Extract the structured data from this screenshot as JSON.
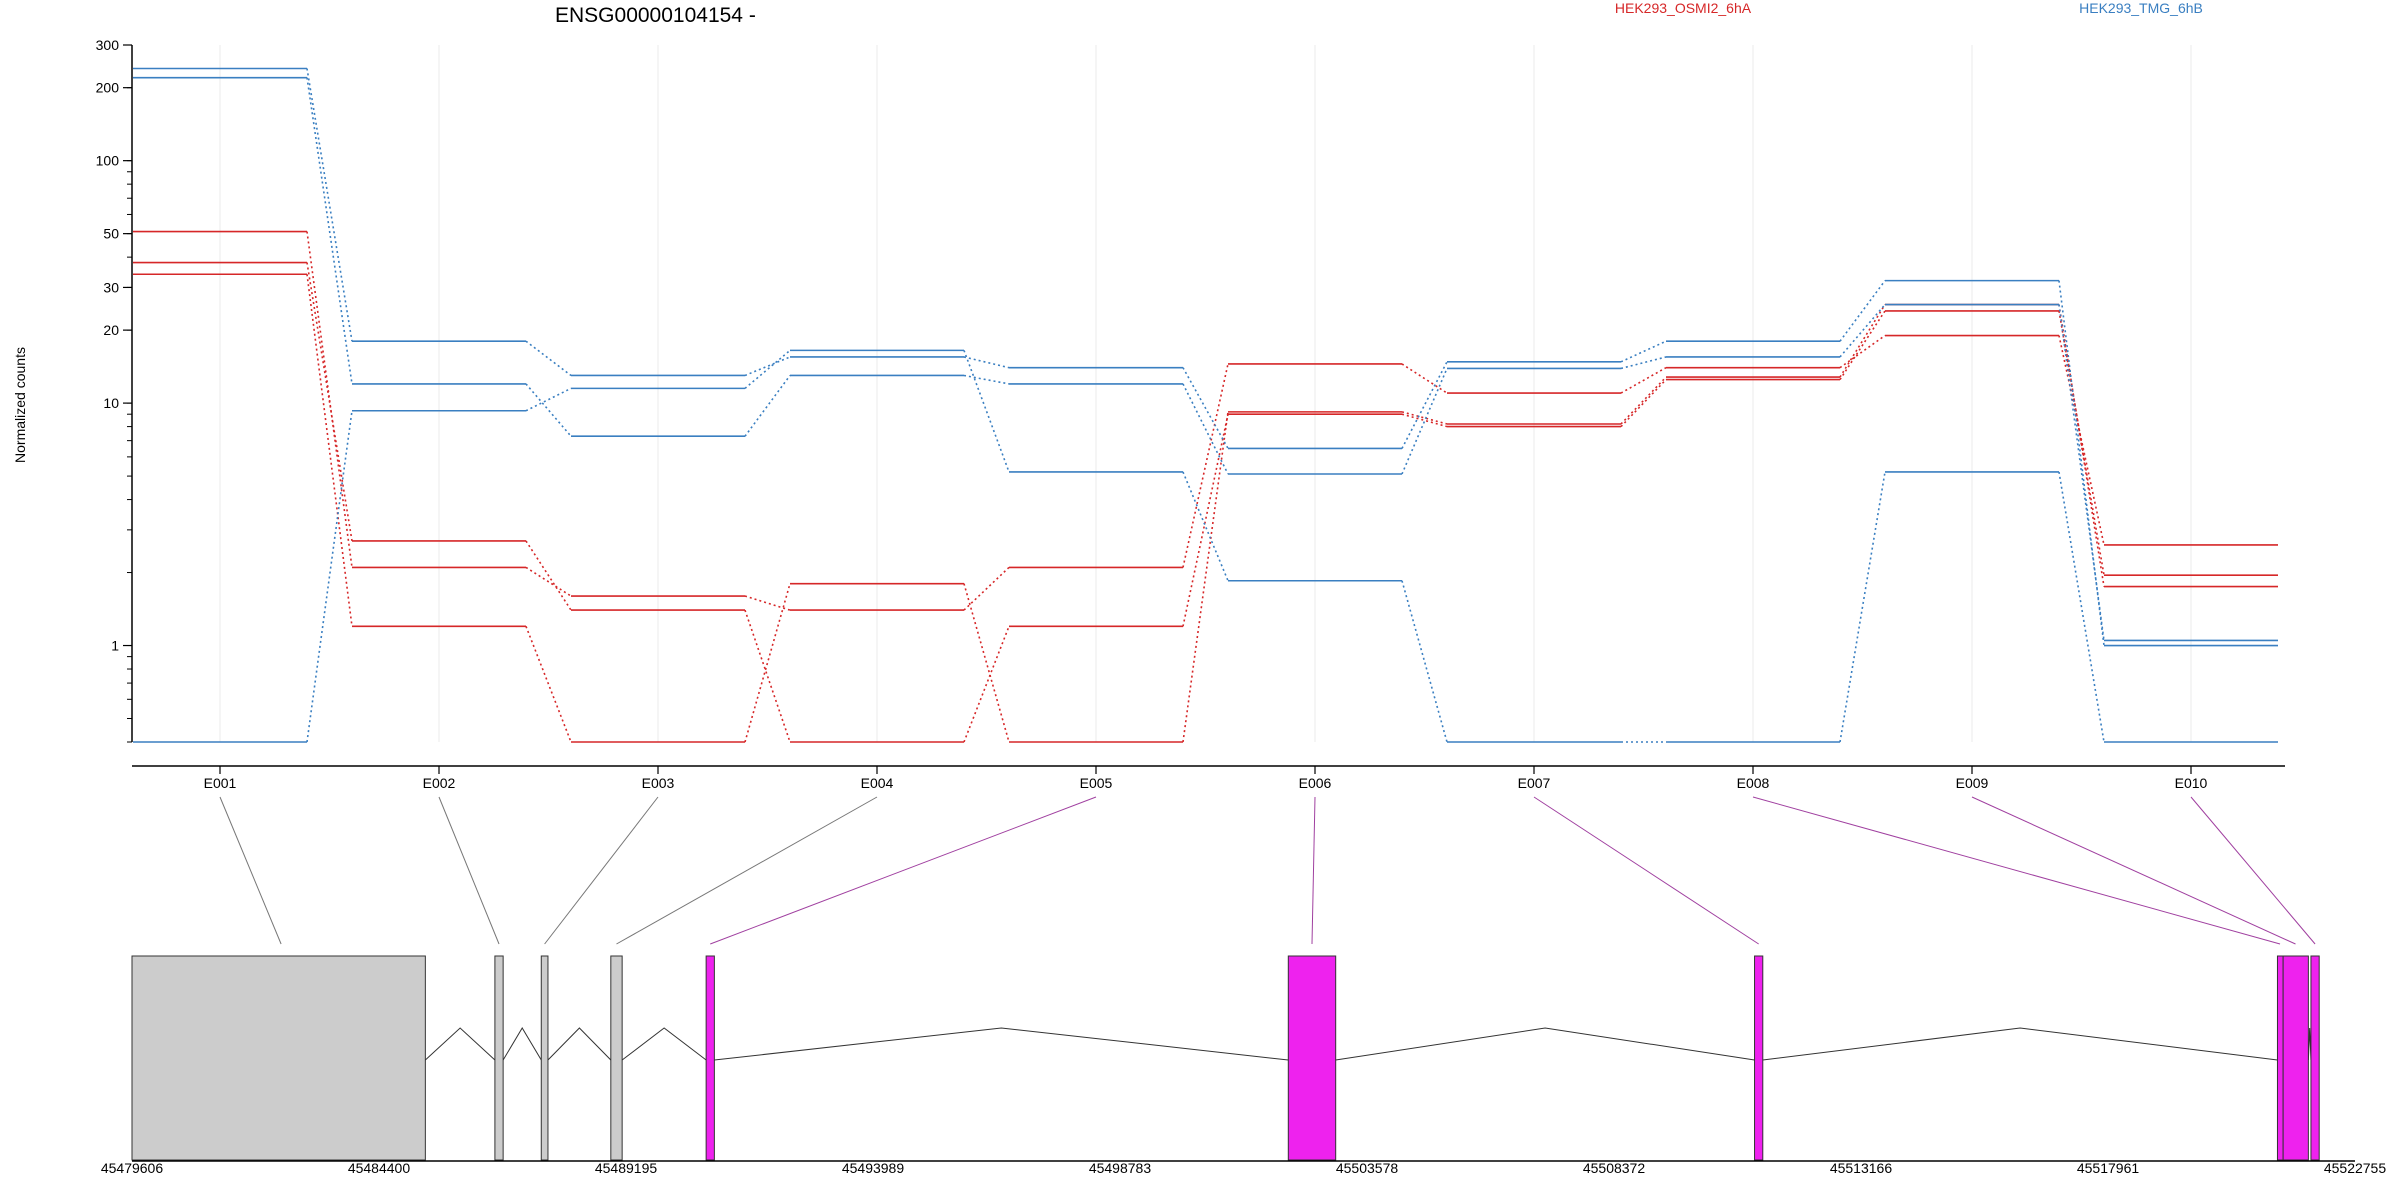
{
  "chart_data": {
    "type": "line",
    "title": "ENSG00000104154 -",
    "ylabel": "Normalized counts",
    "yscale": "log",
    "ylim": [
      0.4,
      300
    ],
    "y_ticks_labeled": [
      "1",
      "10",
      "20",
      "30",
      "50",
      "100",
      "200",
      "300"
    ],
    "categories": [
      "E001",
      "E002",
      "E003",
      "E004",
      "E005",
      "E006",
      "E007",
      "E008",
      "E009",
      "E010"
    ],
    "legend": [
      {
        "name": "HEK293_OSMI2_6hA",
        "color": "#d62728"
      },
      {
        "name": "HEK293_TMG_6hB",
        "color": "#3a7fc1"
      }
    ],
    "series": [
      {
        "group": "HEK293_OSMI2_6hA",
        "color": "#d62728",
        "values": [
          51,
          2.1,
          1.6,
          1.4,
          2.1,
          14.5,
          11,
          14,
          19,
          2.6
        ]
      },
      {
        "group": "HEK293_OSMI2_6hA",
        "color": "#d62728",
        "values": [
          38,
          2.7,
          1.4,
          0.4,
          1.2,
          9.0,
          8.0,
          12.5,
          24,
          1.95
        ]
      },
      {
        "group": "HEK293_OSMI2_6hA",
        "color": "#d62728",
        "values": [
          34,
          1.2,
          0.4,
          1.8,
          0.4,
          9.2,
          8.2,
          12.8,
          25.5,
          1.75
        ]
      },
      {
        "group": "HEK293_TMG_6hB",
        "color": "#3a7fc1",
        "values": [
          240,
          18,
          13,
          15.5,
          14,
          6.5,
          14.8,
          18,
          32,
          1.0
        ]
      },
      {
        "group": "HEK293_TMG_6hB",
        "color": "#3a7fc1",
        "values": [
          220,
          12,
          7.3,
          13,
          12,
          5.1,
          13.9,
          15.5,
          25.5,
          1.05
        ]
      },
      {
        "group": "HEK293_TMG_6hB",
        "color": "#3a7fc1",
        "values": [
          0.4,
          9.3,
          11.5,
          16.5,
          5.2,
          1.85,
          0.4,
          0.4,
          5.2,
          0.4
        ]
      }
    ],
    "gene_model": {
      "coordinate_ticks": [
        "45479606",
        "45484400",
        "45489195",
        "45493989",
        "45498783",
        "45503578",
        "45508372",
        "45513166",
        "45517961",
        "45522755"
      ],
      "exons": [
        {
          "start": 45479606,
          "end": 45485300,
          "color": "#cccccc"
        },
        {
          "start": 45486650,
          "end": 45486810,
          "color": "#cccccc"
        },
        {
          "start": 45487550,
          "end": 45487680,
          "color": "#cccccc"
        },
        {
          "start": 45488900,
          "end": 45489120,
          "color": "#cccccc"
        },
        {
          "start": 45490750,
          "end": 45490910,
          "color": "#ee22ee"
        },
        {
          "start": 45502050,
          "end": 45502970,
          "color": "#ee22ee"
        },
        {
          "start": 45511100,
          "end": 45511260,
          "color": "#ee22ee"
        },
        {
          "start": 45521250,
          "end": 45521360,
          "color": "#ee22ee"
        },
        {
          "start": 45521360,
          "end": 45521850,
          "color": "#ee22ee"
        },
        {
          "start": 45521900,
          "end": 45522060,
          "color": "#ee22ee"
        }
      ],
      "connectors": [
        {
          "from": "E001",
          "to_x": 45482500,
          "color": "#777777"
        },
        {
          "from": "E002",
          "to_x": 45486730,
          "color": "#777777"
        },
        {
          "from": "E003",
          "to_x": 45487615,
          "color": "#777777"
        },
        {
          "from": "E004",
          "to_x": 45489010,
          "color": "#777777"
        },
        {
          "from": "E005",
          "to_x": 45490830,
          "color": "#a040a0"
        },
        {
          "from": "E006",
          "to_x": 45502510,
          "color": "#a040a0"
        },
        {
          "from": "E007",
          "to_x": 45511180,
          "color": "#a040a0"
        },
        {
          "from": "E008",
          "to_x": 45521300,
          "color": "#a040a0"
        },
        {
          "from": "E009",
          "to_x": 45521600,
          "color": "#a040a0"
        },
        {
          "from": "E010",
          "to_x": 45521980,
          "color": "#a040a0"
        }
      ]
    }
  }
}
